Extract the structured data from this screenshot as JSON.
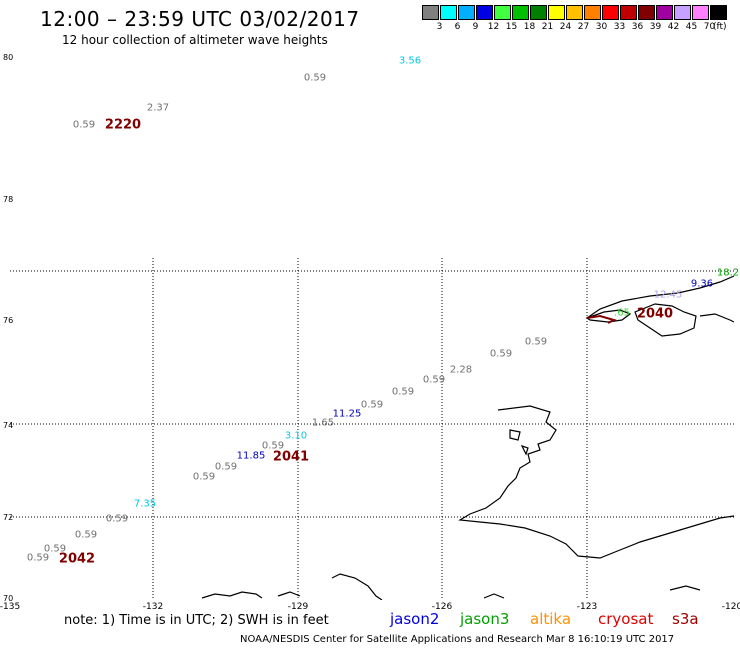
{
  "title": "12:00 – 23:59 UTC 03/02/2017",
  "subtitle": "12 hour collection of altimeter wave heights",
  "scale": {
    "swatches": [
      "#808080",
      "#00ffff",
      "#00b0ff",
      "#0000e0",
      "#40ff40",
      "#00c000",
      "#008000",
      "#ffff00",
      "#ffc000",
      "#ff8000",
      "#ff0000",
      "#c00000",
      "#800000",
      "#a000a0",
      "#c8a0ff",
      "#ff80ff",
      "#000000"
    ],
    "labels": [
      "3",
      "6",
      "9",
      "12",
      "15",
      "18",
      "21",
      "24",
      "27",
      "30",
      "33",
      "36",
      "39",
      "42",
      "45",
      "70"
    ],
    "unit": "(ft)"
  },
  "lat_labels": [
    "80",
    "78",
    "76",
    "74",
    "72",
    "70"
  ],
  "lon_labels": [
    "-135",
    "-132",
    "-129",
    "-126",
    "-123",
    "-120"
  ],
  "observations": [
    {
      "text": "3.56",
      "color": "#00c8e8"
    },
    {
      "text": "0.59",
      "color": "#707070"
    },
    {
      "text": "2.37",
      "color": "#707070"
    },
    {
      "text": "0.59",
      "color": "#707070"
    },
    {
      "text": "18.2",
      "color": "#00a000"
    },
    {
      "text": "9.36",
      "color": "#0000c0"
    },
    {
      "text": "12.45",
      "color": "#b0a0f0"
    },
    {
      "text": ".65",
      "color": "#40d040"
    },
    {
      "text": "0.59",
      "color": "#707070"
    },
    {
      "text": "0.59",
      "color": "#707070"
    },
    {
      "text": "2.28",
      "color": "#707070"
    },
    {
      "text": "0.59",
      "color": "#707070"
    },
    {
      "text": "0.59",
      "color": "#707070"
    },
    {
      "text": "0.59",
      "color": "#707070"
    },
    {
      "text": "11.25",
      "color": "#0000c0"
    },
    {
      "text": "1.65",
      "color": "#707070"
    },
    {
      "text": "3.10",
      "color": "#00c8e8"
    },
    {
      "text": "0.59",
      "color": "#707070"
    },
    {
      "text": "11.85",
      "color": "#0000c0"
    },
    {
      "text": "0.59",
      "color": "#707070"
    },
    {
      "text": "0.59",
      "color": "#707070"
    },
    {
      "text": "7.35",
      "color": "#00c8e8"
    },
    {
      "text": "0.59",
      "color": "#707070"
    },
    {
      "text": "0.59",
      "color": "#707070"
    },
    {
      "text": "0.59",
      "color": "#707070"
    },
    {
      "text": "0.59",
      "color": "#707070"
    }
  ],
  "passes": [
    "2220",
    "2040",
    "2041",
    "2042"
  ],
  "note": "note:  1) Time is in UTC;  2) SWH is in feet",
  "satellites": [
    {
      "name": "jason2",
      "color": "#0000e0"
    },
    {
      "name": "jason3",
      "color": "#00a000"
    },
    {
      "name": "altika",
      "color": "#ff9000"
    },
    {
      "name": "cryosat",
      "color": "#e00000"
    },
    {
      "name": "s3a",
      "color": "#a00000"
    }
  ],
  "footer": "NOAA/NESDIS Center for Satellite Applications and Research    Mar  8 16:10:19 UTC 2017"
}
